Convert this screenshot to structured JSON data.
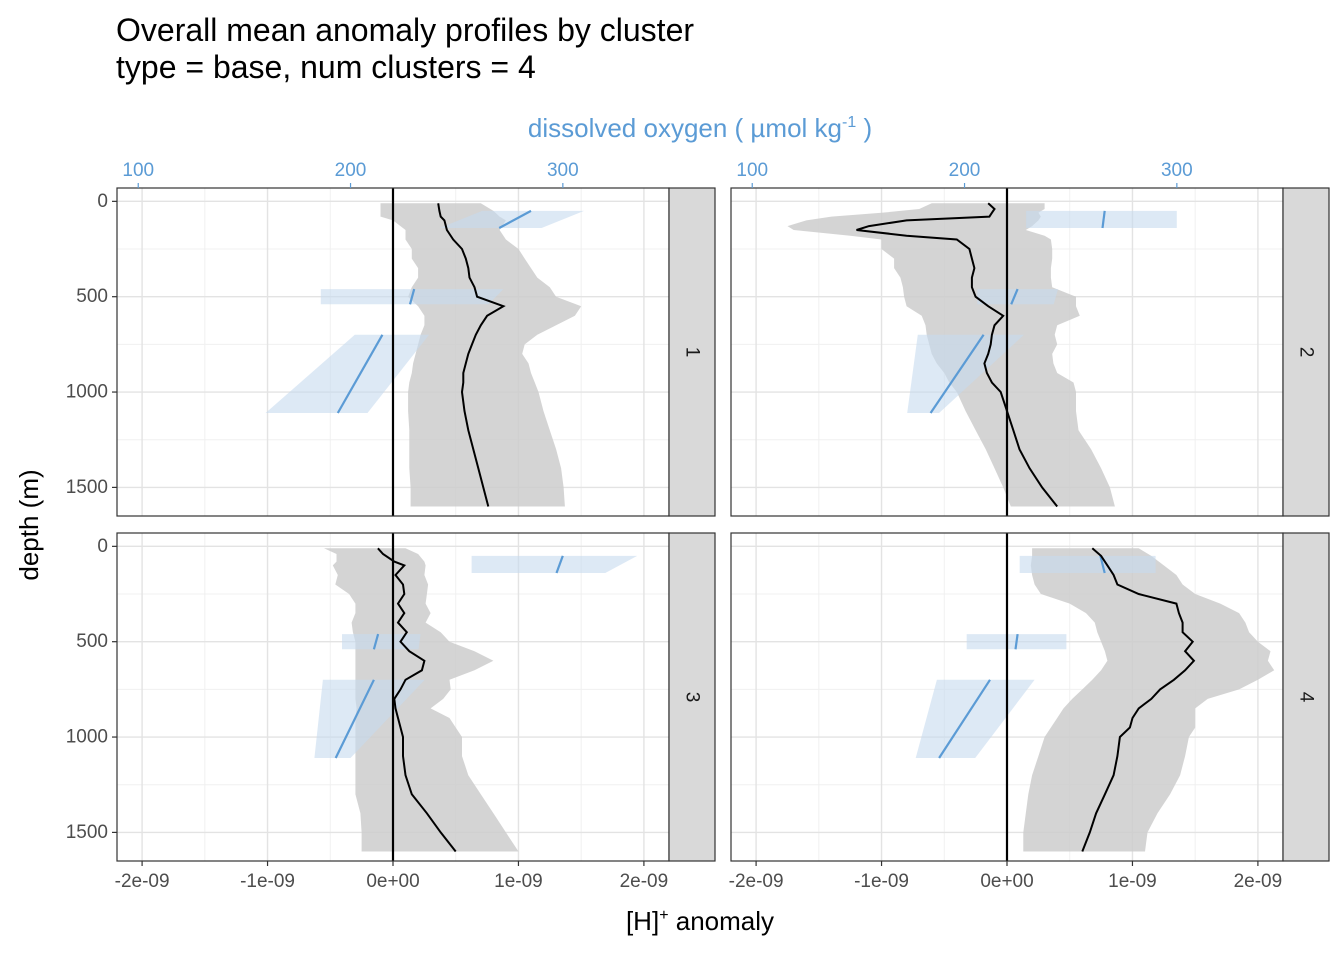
{
  "chart_data": {
    "type": "line",
    "title": "Overall mean anomaly profiles by cluster",
    "subtitle": "type = base, num clusters = 4",
    "xlabel": "[H]",
    "xlabel_sup": "+",
    "xlabel_suffix": " anomaly",
    "ylabel": "depth (m)",
    "secondary_xlabel": "dissolved oxygen ( µmol kg",
    "secondary_xlabel_sup": "-1",
    "secondary_xlabel_suffix": " )",
    "x_ticks": [
      {
        "value": -2e-09,
        "label": "-2e-09"
      },
      {
        "value": -1e-09,
        "label": "-1e-09"
      },
      {
        "value": 0,
        "label": "0e+00"
      },
      {
        "value": 1e-09,
        "label": "1e-09"
      },
      {
        "value": 2e-09,
        "label": "2e-09"
      }
    ],
    "secondary_x_ticks": [
      {
        "value": 100,
        "label": "100"
      },
      {
        "value": 200,
        "label": "200"
      },
      {
        "value": 300,
        "label": "300"
      }
    ],
    "y_ticks": [
      {
        "value": 0,
        "label": "0"
      },
      {
        "value": 500,
        "label": "500"
      },
      {
        "value": 1000,
        "label": "1000"
      },
      {
        "value": 1500,
        "label": "1500"
      }
    ],
    "xlim": [
      -2.2e-09,
      2.2e-09
    ],
    "secondary_xlim": [
      90,
      350
    ],
    "ylim": [
      1650,
      -70
    ],
    "colors": {
      "oxygen": "#5b9bd5",
      "oxygen_ribbon": "#c6dbef",
      "ribbon": "#cccccc",
      "line": "#000000"
    },
    "panels": [
      {
        "label": "1",
        "h_anomaly": {
          "depth": [
            10,
            50,
            80,
            100,
            150,
            200,
            250,
            300,
            350,
            400,
            450,
            500,
            550,
            600,
            650,
            700,
            750,
            800,
            850,
            900,
            950,
            1000,
            1100,
            1200,
            1300,
            1400,
            1500,
            1600
          ],
          "mean": [
            3.6e-10,
            3.7e-10,
            3.8e-10,
            4.1e-10,
            4.3e-10,
            4.8e-10,
            5.5e-10,
            5.8e-10,
            6e-10,
            6.1e-10,
            6.5e-10,
            6.7e-10,
            8.8e-10,
            7.5e-10,
            7e-10,
            6.6e-10,
            6.3e-10,
            6e-10,
            5.8e-10,
            5.6e-10,
            5.6e-10,
            5.5e-10,
            5.7e-10,
            6e-10,
            6.4e-10,
            6.8e-10,
            7.2e-10,
            7.6e-10
          ],
          "lower": [
            -1e-10,
            -1e-10,
            -1e-10,
            0,
            1e-10,
            1e-10,
            1.5e-10,
            1.5e-10,
            2e-10,
            2e-10,
            1.5e-10,
            1.2e-10,
            2e-10,
            2.5e-10,
            2.5e-10,
            2.2e-10,
            2e-10,
            1.8e-10,
            1.6e-10,
            1.5e-10,
            1.3e-10,
            1.2e-10,
            1.2e-10,
            1.3e-10,
            1.3e-10,
            1.3e-10,
            1.4e-10,
            1.4e-10
          ],
          "upper": [
            7e-10,
            8e-10,
            8.5e-10,
            9e-10,
            8.5e-10,
            9e-10,
            1e-09,
            1.05e-09,
            1.1e-09,
            1.15e-09,
            1.25e-09,
            1.3e-09,
            1.5e-09,
            1.45e-09,
            1.3e-09,
            1.15e-09,
            1.05e-09,
            1.03e-09,
            1.08e-09,
            1.1e-09,
            1.13e-09,
            1.16e-09,
            1.2e-09,
            1.25e-09,
            1.3e-09,
            1.34e-09,
            1.36e-09,
            1.37e-09
          ]
        },
        "oxygen": [
          {
            "depth": [
              50,
              140
            ],
            "mean": [
              285,
              270
            ],
            "lower": [
              262,
              242
            ],
            "upper": [
              310,
              290
            ]
          },
          {
            "depth": [
              460,
              540
            ],
            "mean": [
              230,
              228
            ],
            "lower": [
              186,
              186
            ],
            "upper": [
              272,
              265
            ]
          },
          {
            "depth": [
              700,
              1110
            ],
            "mean": [
              215,
              194
            ],
            "lower": [
              202,
              160
            ],
            "upper": [
              237,
              208
            ]
          }
        ]
      },
      {
        "label": "2",
        "h_anomaly": {
          "depth": [
            10,
            40,
            60,
            80,
            100,
            130,
            150,
            180,
            200,
            250,
            300,
            350,
            400,
            450,
            500,
            550,
            600,
            650,
            700,
            750,
            800,
            850,
            900,
            950,
            1000,
            1100,
            1200,
            1300,
            1400,
            1500,
            1600
          ],
          "mean": [
            -1.5e-10,
            -1e-10,
            -1.2e-10,
            -1.4e-10,
            -8e-10,
            -1.1e-09,
            -1.2e-09,
            -8e-10,
            -4e-10,
            -3e-10,
            -2.8e-10,
            -2.6e-10,
            -2.8e-10,
            -2.8e-10,
            -2.5e-10,
            -1.5e-10,
            -3e-11,
            -1e-10,
            -1.2e-10,
            -1.3e-10,
            -1.5e-10,
            -1.8e-10,
            -1.6e-10,
            -1.2e-10,
            -5e-11,
            0,
            5e-11,
            1e-10,
            1.8e-10,
            2.8e-10,
            4e-10
          ],
          "lower": [
            -6e-10,
            -7e-10,
            -1e-09,
            -1.4e-09,
            -1.6e-09,
            -1.75e-09,
            -1.7e-09,
            -1.25e-09,
            -1e-09,
            -1e-09,
            -9e-10,
            -9e-10,
            -8.5e-10,
            -8.3e-10,
            -8.2e-10,
            -8e-10,
            -6.8e-10,
            -6.5e-10,
            -6.4e-10,
            -6.2e-10,
            -6e-10,
            -5.6e-10,
            -5e-10,
            -4.6e-10,
            -4e-10,
            -3.3e-10,
            -2.5e-10,
            -1.7e-10,
            -1e-10,
            -3e-11,
            3e-11
          ],
          "upper": [
            3e-10,
            3e-10,
            2.5e-10,
            2.7e-10,
            2.5e-10,
            2e-10,
            1.5e-10,
            3e-10,
            3.5e-10,
            3.6e-10,
            3.6e-10,
            3.5e-10,
            3.5e-10,
            3.6e-10,
            5.5e-10,
            5.5e-10,
            5.8e-10,
            4e-10,
            3.8e-10,
            4e-10,
            3.6e-10,
            3.7e-10,
            4e-10,
            5.3e-10,
            5.5e-10,
            5.5e-10,
            5.7e-10,
            6.7e-10,
            7.5e-10,
            8.2e-10,
            8.6e-10
          ]
        },
        "oxygen": [
          {
            "depth": [
              50,
              140
            ],
            "mean": [
              266,
              265
            ],
            "lower": [
              229,
              229
            ],
            "upper": [
              300,
              300
            ]
          },
          {
            "depth": [
              460,
              540
            ],
            "mean": [
              225,
              222
            ],
            "lower": [
              206,
              206
            ],
            "upper": [
              244,
              242
            ]
          },
          {
            "depth": [
              700,
              1110
            ],
            "mean": [
              209,
              184
            ],
            "lower": [
              178,
              173
            ],
            "upper": [
              228,
              188
            ]
          }
        ]
      },
      {
        "label": "3",
        "h_anomaly": {
          "depth": [
            10,
            40,
            80,
            100,
            150,
            200,
            250,
            300,
            350,
            400,
            450,
            500,
            550,
            600,
            650,
            700,
            750,
            800,
            850,
            900,
            950,
            1000,
            1100,
            1200,
            1300,
            1400,
            1500,
            1600
          ],
          "mean": [
            -1.2e-10,
            -8e-11,
            1e-11,
            9e-11,
            2e-11,
            8e-11,
            9e-11,
            4e-11,
            9e-11,
            4e-11,
            1.1e-10,
            6e-11,
            1.3e-10,
            2.5e-10,
            2.3e-10,
            1e-10,
            6e-11,
            1e-11,
            2e-11,
            4e-11,
            6e-11,
            8e-11,
            8e-11,
            1e-10,
            1.5e-10,
            2.7e-10,
            3.8e-10,
            5e-10
          ],
          "lower": [
            -5.5e-10,
            -4.5e-10,
            -4.5e-10,
            -4.8e-10,
            -4.4e-10,
            -4.6e-10,
            -3.5e-10,
            -3e-10,
            -3e-10,
            -3.3e-10,
            -3.2e-10,
            -3e-10,
            -3e-10,
            -3e-10,
            -3e-10,
            -3e-10,
            -3e-10,
            -3e-10,
            -2.9e-10,
            -3e-10,
            -3e-10,
            -3e-10,
            -3e-10,
            -3e-10,
            -3e-10,
            -2.6e-10,
            -2.5e-10,
            -2.5e-10
          ],
          "upper": [
            1e-10,
            2e-10,
            2.5e-10,
            2.6e-10,
            2.5e-10,
            2.8e-10,
            2.7e-10,
            2.6e-10,
            3e-10,
            2.6e-10,
            3.8e-10,
            4.5e-10,
            6.5e-10,
            8e-10,
            6.5e-10,
            4.5e-10,
            4.6e-10,
            4e-10,
            3e-10,
            4.5e-10,
            5e-10,
            5.5e-10,
            5.5e-10,
            6e-10,
            7e-10,
            8e-10,
            9e-10,
            1e-09
          ]
        },
        "oxygen": [
          {
            "depth": [
              50,
              140
            ],
            "mean": [
              300,
              297
            ],
            "lower": [
              257,
              257
            ],
            "upper": [
              335,
              320
            ]
          },
          {
            "depth": [
              460,
              540
            ],
            "mean": [
              213,
              211
            ],
            "lower": [
              196,
              196
            ],
            "upper": [
              233,
              232
            ]
          },
          {
            "depth": [
              700,
              1110
            ],
            "mean": [
              211,
              193
            ],
            "lower": [
              187,
              183
            ],
            "upper": [
              235,
              200
            ]
          }
        ]
      },
      {
        "label": "4",
        "h_anomaly": {
          "depth": [
            10,
            50,
            100,
            150,
            200,
            250,
            300,
            350,
            400,
            450,
            500,
            550,
            600,
            650,
            700,
            750,
            800,
            850,
            900,
            950,
            1000,
            1100,
            1200,
            1300,
            1400,
            1500,
            1600
          ],
          "mean": [
            6.8e-10,
            7.5e-10,
            8e-10,
            8.5e-10,
            8.8e-10,
            1.05e-09,
            1.35e-09,
            1.37e-09,
            1.4e-09,
            1.4e-09,
            1.48e-09,
            1.42e-09,
            1.49e-09,
            1.42e-09,
            1.33e-09,
            1.22e-09,
            1.15e-09,
            1.05e-09,
            1e-09,
            9.8e-10,
            9e-10,
            8.8e-10,
            8.5e-10,
            7.8e-10,
            7.1e-10,
            6.6e-10,
            6e-10
          ],
          "lower": [
            2e-10,
            2e-10,
            1.9e-10,
            2e-10,
            2.2e-10,
            2.7e-10,
            5e-10,
            6.3e-10,
            7e-10,
            7.2e-10,
            7.5e-10,
            7.8e-10,
            8e-10,
            7.5e-10,
            6.8e-10,
            6e-10,
            5.2e-10,
            4.5e-10,
            4e-10,
            3.5e-10,
            3e-10,
            2.5e-10,
            2e-10,
            1.7e-10,
            1.5e-10,
            1.3e-10,
            1.3e-10
          ],
          "upper": [
            1.05e-09,
            1.15e-09,
            1.25e-09,
            1.35e-09,
            1.4e-09,
            1.5e-09,
            1.7e-09,
            1.85e-09,
            1.9e-09,
            1.93e-09,
            2e-09,
            2.1e-09,
            2.08e-09,
            2.13e-09,
            2e-09,
            1.85e-09,
            1.6e-09,
            1.5e-09,
            1.5e-09,
            1.5e-09,
            1.45e-09,
            1.42e-09,
            1.38e-09,
            1.3e-09,
            1.2e-09,
            1.12e-09,
            1.1e-09
          ]
        },
        "oxygen": [
          {
            "depth": [
              50,
              140
            ],
            "mean": [
              264,
              266
            ],
            "lower": [
              226,
              226
            ],
            "upper": [
              290,
              290
            ]
          },
          {
            "depth": [
              460,
              540
            ],
            "mean": [
              225,
              224
            ],
            "lower": [
              201,
              201
            ],
            "upper": [
              248,
              248
            ]
          },
          {
            "depth": [
              700,
              1110
            ],
            "mean": [
              212,
              188
            ],
            "lower": [
              187,
              177
            ],
            "upper": [
              233,
              205
            ]
          }
        ]
      }
    ]
  }
}
